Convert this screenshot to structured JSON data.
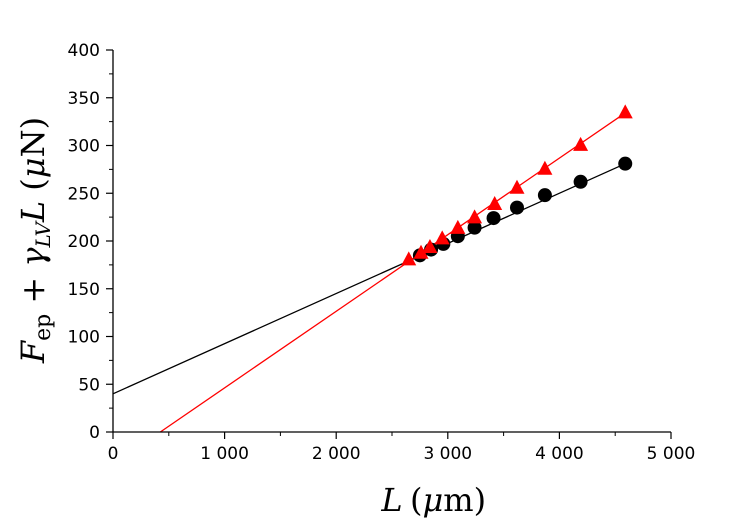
{
  "chart_data": {
    "type": "scatter",
    "title": "",
    "xlabel": "L (μm)",
    "ylabel": "F_ep + γ_LV L (μN)",
    "xlim": [
      0,
      5000
    ],
    "ylim": [
      0,
      400
    ],
    "x_ticks": [
      0,
      1000,
      2000,
      3000,
      4000,
      5000
    ],
    "x_tick_labels": [
      "0",
      "1 000",
      "2 000",
      "3 000",
      "4 000",
      "5 000"
    ],
    "y_ticks": [
      0,
      50,
      100,
      150,
      200,
      250,
      300,
      350,
      400
    ],
    "y_tick_labels": [
      "0",
      "50",
      "100",
      "150",
      "200",
      "250",
      "300",
      "350",
      "400"
    ],
    "grid": false,
    "series": [
      {
        "marker": "circle",
        "color": "#000000",
        "x": [
          2750,
          2850,
          2960,
          3090,
          3240,
          3410,
          3620,
          3870,
          4190,
          4590
        ],
        "y": [
          185,
          191,
          197,
          205,
          214,
          224,
          235,
          248,
          262,
          281
        ],
        "fit": {
          "slope": 0.0525,
          "intercept": 40,
          "x_range": [
            0,
            4590
          ]
        }
      },
      {
        "marker": "triangle",
        "color": "#ff0000",
        "x": [
          2650,
          2760,
          2840,
          2950,
          3090,
          3240,
          3420,
          3620,
          3870,
          4190,
          4590
        ],
        "y": [
          180,
          187,
          193,
          202,
          213,
          224,
          238,
          255,
          275,
          300,
          334
        ],
        "fit": {
          "slope": 0.0802,
          "intercept": -34,
          "x_range": [
            424,
            4590
          ]
        }
      }
    ]
  }
}
